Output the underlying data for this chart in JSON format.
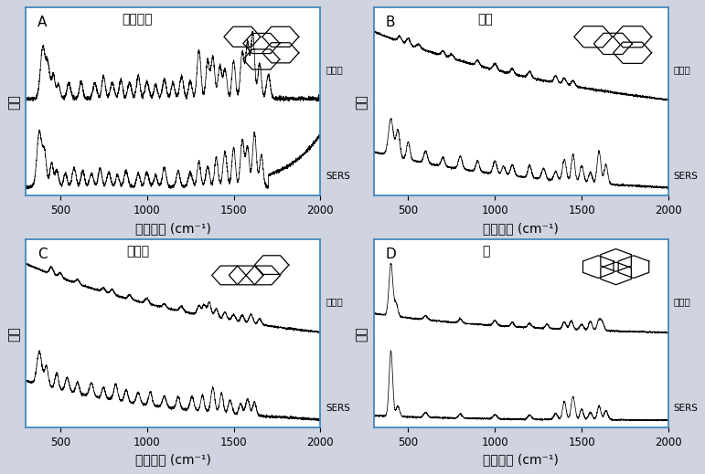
{
  "panels": [
    "A",
    "B",
    "C",
    "D"
  ],
  "titles": [
    "苯并荚衘",
    "荚衘",
    "苯并荘",
    "芹"
  ],
  "xlabel": "拉曼位移 (cm⁻¹)",
  "ylabel": "强度",
  "label_std": "标准品",
  "label_sers": "SERS",
  "bg_color": "#d0d4e0",
  "panel_bg": "#ffffff",
  "border_color": "#4488bb",
  "line_color": "#000000",
  "tick_label_size": 8.5,
  "axis_label_size": 10
}
